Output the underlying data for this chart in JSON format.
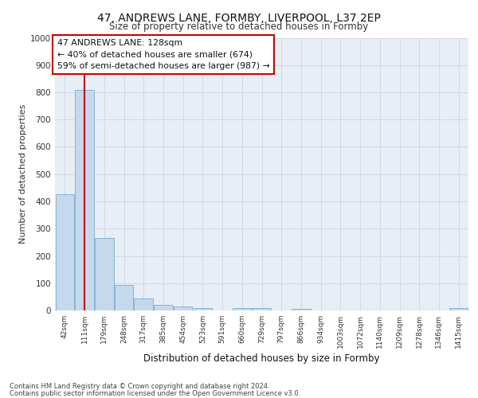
{
  "title": "47, ANDREWS LANE, FORMBY, LIVERPOOL, L37 2EP",
  "subtitle": "Size of property relative to detached houses in Formby",
  "xlabel": "Distribution of detached houses by size in Formby",
  "ylabel": "Number of detached properties",
  "categories": [
    "42sqm",
    "111sqm",
    "179sqm",
    "248sqm",
    "317sqm",
    "385sqm",
    "454sqm",
    "523sqm",
    "591sqm",
    "660sqm",
    "729sqm",
    "797sqm",
    "866sqm",
    "934sqm",
    "1003sqm",
    "1072sqm",
    "1140sqm",
    "1209sqm",
    "1278sqm",
    "1346sqm",
    "1415sqm"
  ],
  "values": [
    425,
    810,
    265,
    93,
    43,
    20,
    15,
    10,
    0,
    10,
    8,
    0,
    7,
    0,
    0,
    0,
    0,
    0,
    0,
    0,
    8
  ],
  "bar_color": "#c5d8ed",
  "bar_edge_color": "#7aaece",
  "property_line_x": 1,
  "property_line_color": "#cc0000",
  "annotation_text": "47 ANDREWS LANE: 128sqm\n← 40% of detached houses are smaller (674)\n59% of semi-detached houses are larger (987) →",
  "annotation_box_color": "#ffffff",
  "annotation_box_edge_color": "#cc0000",
  "grid_color": "#d0d8e8",
  "background_color": "#e8eef5",
  "ylim": [
    0,
    1000
  ],
  "yticks": [
    0,
    100,
    200,
    300,
    400,
    500,
    600,
    700,
    800,
    900,
    1000
  ],
  "footer_line1": "Contains HM Land Registry data © Crown copyright and database right 2024.",
  "footer_line2": "Contains public sector information licensed under the Open Government Licence v3.0."
}
